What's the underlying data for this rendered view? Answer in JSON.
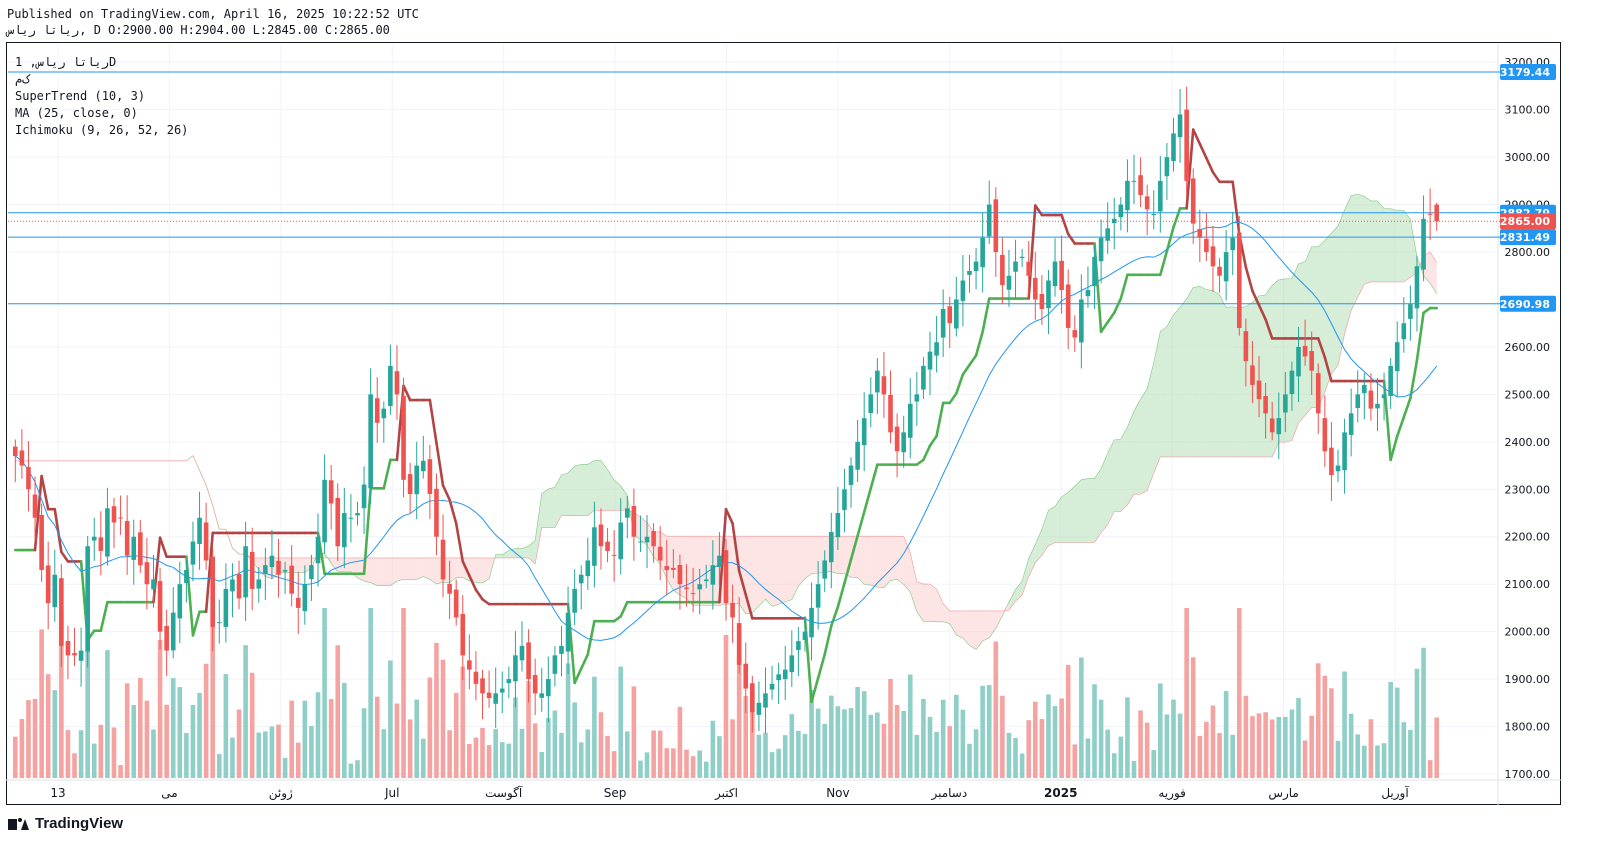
{
  "header": {
    "published": "Published on TradingView.com, April 16, 2025 10:22:52 UTC",
    "ohlc": "ریاتا ریاس, D O:2900.00 H:2904.00 L:2845.00 C:2865.00"
  },
  "legend": {
    "symbol": "ریاتا ریاس, 1D",
    "sub": "ک‌م",
    "supertrend": "SuperTrend (10, 3)",
    "ma": "MA (25, close, 0)",
    "ichimoku": "Ichimoku (9, 26, 52, 26)"
  },
  "footer": {
    "logo_text": "TradingView"
  },
  "colors": {
    "up": "#26a69a",
    "down": "#ef5350",
    "vol_up": "#8fcfc8",
    "vol_down": "#f5a3a1",
    "supertrend_up": "#4caf50",
    "supertrend_down": "#b24444",
    "ma": "#2196f3",
    "cloud_bull": "#a5d6a7",
    "cloud_bear": "#f8c6c4",
    "hline": "#2196f3",
    "close_tag": "#ef5350"
  },
  "chart_data": {
    "type": "candlestick",
    "y_axis_labels": [
      "3200.00",
      "3100.00",
      "3000.00",
      "2900.00",
      "2800.00",
      "2600.00",
      "2500.00",
      "2400.00",
      "2300.00",
      "2200.00",
      "2100.00",
      "2000.00",
      "1900.00",
      "1800.00",
      "1700.00"
    ],
    "x_axis_labels": [
      "13",
      "می",
      "ژوئن",
      "Jul",
      "آگوست",
      "Sep",
      "اکتبر",
      "Nov",
      "دسامبر",
      "2025",
      "فوریه",
      "مارس",
      "آوریل"
    ],
    "price_range": [
      1700,
      3230
    ],
    "price_tags": [
      {
        "value": 3179.44,
        "label": "3179.44",
        "kind": "hline"
      },
      {
        "value": 2882.79,
        "label": "2882.79",
        "kind": "hline"
      },
      {
        "value": 2865.0,
        "label": "2865.00",
        "kind": "close"
      },
      {
        "value": 2831.49,
        "label": "2831.49",
        "kind": "hline"
      },
      {
        "value": 2690.98,
        "label": "2690.98",
        "kind": "hline"
      }
    ],
    "last": {
      "open": 2900.0,
      "high": 2904.0,
      "low": 2845.0,
      "close": 2865.0
    },
    "closes": [
      2370,
      2350,
      2300,
      2240,
      2130,
      2060,
      2120,
      1970,
      1950,
      1950,
      1960,
      2180,
      2200,
      2170,
      2260,
      2230,
      2240,
      2160,
      2200,
      2140,
      2100,
      2110,
      2000,
      1960,
      2040,
      2100,
      2130,
      2190,
      2240,
      2150,
      2010,
      2020,
      2090,
      2110,
      2070,
      2180,
      2090,
      2110,
      2140,
      2160,
      2120,
      2130,
      2080,
      2050,
      2100,
      2140,
      2200,
      2320,
      2270,
      2180,
      2250,
      2240,
      2250,
      2310,
      2500,
      2440,
      2470,
      2560,
      2500,
      2320,
      2290,
      2350,
      2360,
      2290,
      2200,
      2110,
      2080,
      2030,
      1950,
      1920,
      1890,
      1870,
      1860,
      1870,
      1880,
      1900,
      1950,
      1970,
      1900,
      1870,
      1870,
      1900,
      1950,
      1970,
      2040,
      2090,
      2120,
      2150,
      2220,
      2180,
      2170,
      2160,
      2230,
      2260,
      2200,
      2190,
      2200,
      2180,
      2150,
      2130,
      2130,
      2100,
      2090,
      2080,
      2100,
      2110,
      2140,
      2160,
      2060,
      2030,
      1930,
      1880,
      1830,
      1850,
      1870,
      1890,
      1910,
      1920,
      1950,
      1980,
      2000,
      2050,
      2100,
      2150,
      2210,
      2250,
      2300,
      2350,
      2400,
      2450,
      2500,
      2550,
      2500,
      2420,
      2380,
      2420,
      2480,
      2500,
      2560,
      2590,
      2610,
      2680,
      2650,
      2700,
      2740,
      2760,
      2780,
      2830,
      2900,
      2800,
      2730,
      2750,
      2780,
      2790,
      2750,
      2700,
      2680,
      2740,
      2780,
      2720,
      2640,
      2620,
      2700,
      2720,
      2790,
      2830,
      2850,
      2870,
      2900,
      2950,
      2950,
      2920,
      2890,
      2880,
      2950,
      3000,
      3050,
      3090,
      2950,
      2860,
      2830,
      2800,
      2770,
      2750,
      2800,
      2830,
      2640,
      2570,
      2520,
      2490,
      2460,
      2420,
      2450,
      2500,
      2550,
      2600,
      2580,
      2550,
      2460,
      2380,
      2330,
      2350,
      2420,
      2460,
      2500,
      2520,
      2470,
      2480,
      2500,
      2560,
      2610,
      2650,
      2690,
      2770,
      2870,
      2880,
      2865
    ],
    "volume_range": [
      0,
      140
    ],
    "volumes_note": "bars drawn from closes direction"
  }
}
